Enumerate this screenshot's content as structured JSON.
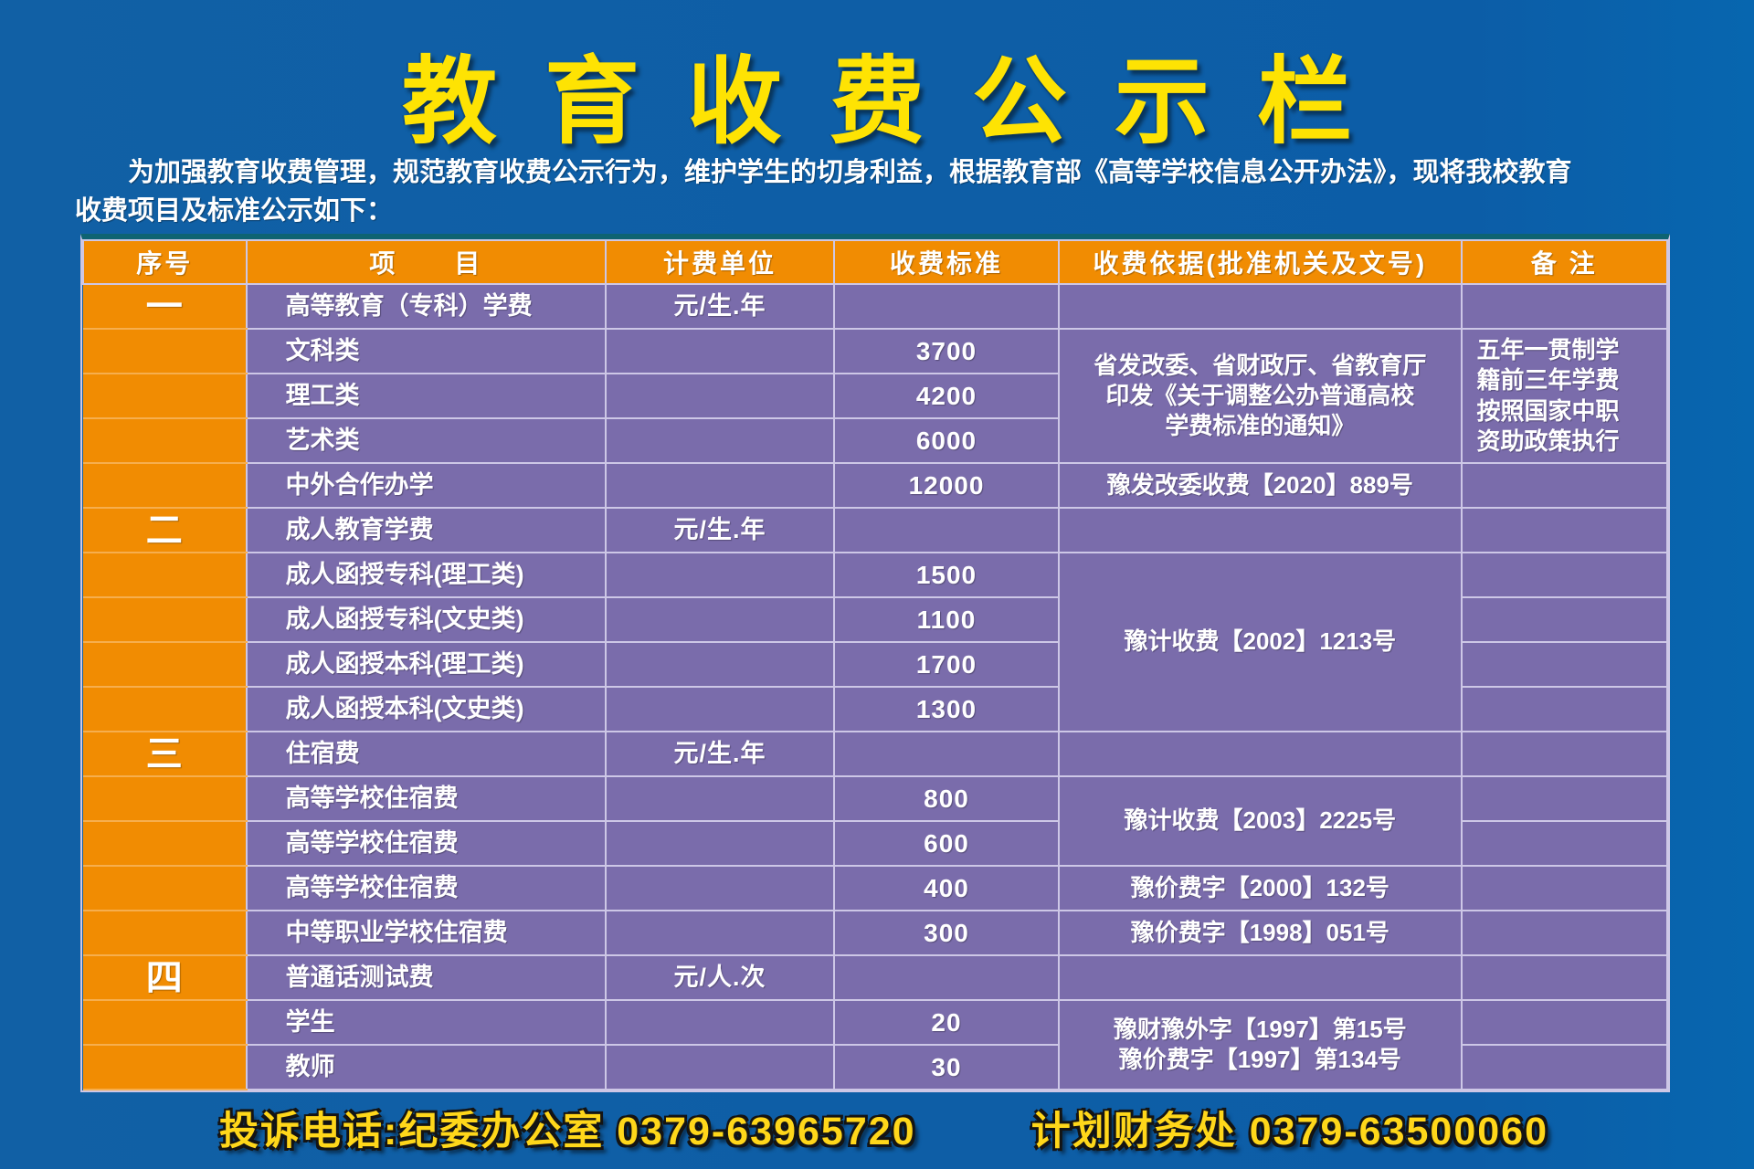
{
  "title": "教育收费公示栏",
  "intro": "为加强教育收费管理，规范教育收费公示行为，维护学生的切身利益，根据教育部《高等学校信息公开办法》，现将我校教育\n收费项目及标准公示如下：",
  "colors": {
    "background_blue": "#0e5ea6",
    "header_orange": "#f18c02",
    "cell_purple": "#7a6cab",
    "grid_line": "#cdc7e6",
    "orange_separator": "#f6ae4e",
    "teal_accent": "#0e6372",
    "title_yellow": "#fee303",
    "footer_yellow": "#ffd71a"
  },
  "table": {
    "columns": [
      "序号",
      "项　　目",
      "计费单位",
      "收费标准",
      "收费依据(批准机关及文号)",
      "备 注"
    ],
    "col_keys": [
      "index",
      "item",
      "unit",
      "fee",
      "basis",
      "remark"
    ],
    "col_widths_pct": [
      10.3,
      22.7,
      14.4,
      14.2,
      25.4,
      13.0
    ],
    "rows": [
      [
        "一",
        "高等教育（专科）学费",
        "元/生.年",
        "",
        "",
        ""
      ],
      [
        "",
        "文科类",
        "",
        "3700",
        {
          "t": "省发改委、省财政厅、省教育厅\n印发《关于调整公办普通高校\n学费标准的通知》",
          "rs": 3
        },
        {
          "t": "五年一贯制学\n籍前三年学费\n按照国家中职\n资助政策执行",
          "rs": 3
        }
      ],
      [
        "",
        "理工类",
        "",
        "4200",
        null,
        null
      ],
      [
        "",
        "艺术类",
        "",
        "6000",
        null,
        null
      ],
      [
        "",
        "中外合作办学",
        "",
        "12000",
        "豫发改委收费【2020】889号",
        ""
      ],
      [
        "二",
        "成人教育学费",
        "元/生.年",
        "",
        "",
        ""
      ],
      [
        "",
        "成人函授专科(理工类)",
        "",
        "1500",
        {
          "t": "豫计收费【2002】1213号",
          "rs": 4
        },
        ""
      ],
      [
        "",
        "成人函授专科(文史类)",
        "",
        "1100",
        null,
        ""
      ],
      [
        "",
        "成人函授本科(理工类)",
        "",
        "1700",
        null,
        ""
      ],
      [
        "",
        "成人函授本科(文史类)",
        "",
        "1300",
        null,
        ""
      ],
      [
        "三",
        "住宿费",
        "元/生.年",
        "",
        "",
        ""
      ],
      [
        "",
        "高等学校住宿费",
        "",
        "800",
        {
          "t": "豫计收费【2003】2225号",
          "rs": 2
        },
        ""
      ],
      [
        "",
        "高等学校住宿费",
        "",
        "600",
        null,
        ""
      ],
      [
        "",
        "高等学校住宿费",
        "",
        "400",
        "豫价费字【2000】132号",
        ""
      ],
      [
        "",
        "中等职业学校住宿费",
        "",
        "300",
        "豫价费字【1998】051号",
        ""
      ],
      [
        "四",
        "普通话测试费",
        "元/人.次",
        "",
        "",
        ""
      ],
      [
        "",
        "学生",
        "",
        "20",
        {
          "t": "豫财豫外字【1997】第15号\n豫价费字【1997】第134号",
          "rs": 2
        },
        ""
      ],
      [
        "",
        "教师",
        "",
        "30",
        null,
        ""
      ]
    ]
  },
  "footer": {
    "complaint_phone": "投诉电话:纪委办公室 0379-63965720",
    "finance_phone": "计划财务处 0379-63500060"
  }
}
